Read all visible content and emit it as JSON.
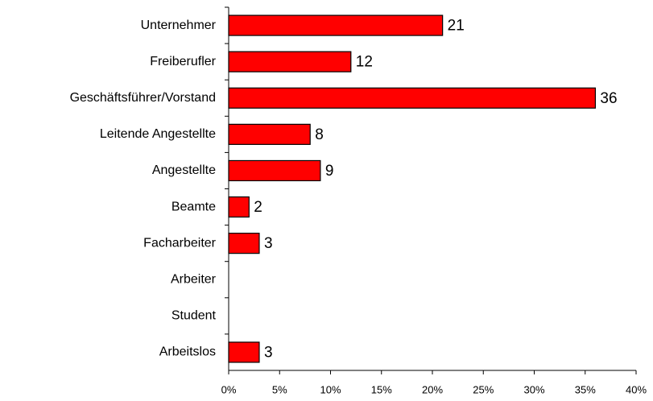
{
  "chart_data": {
    "type": "hbar",
    "categories": [
      "Unternehmer",
      "Freiberufler",
      "Geschäftsführer/Vorstand",
      "Leitende Angestellte",
      "Angestellte",
      "Beamte",
      "Facharbeiter",
      "Arbeiter",
      "Student",
      "Arbeitslos"
    ],
    "values": [
      21,
      12,
      36,
      8,
      9,
      2,
      3,
      0,
      0,
      3
    ],
    "value_labels": [
      "21",
      "12",
      "36",
      "8",
      "9",
      "2",
      "3",
      null,
      null,
      "3"
    ],
    "color": "#ff0000",
    "xlim": [
      0,
      40
    ],
    "xticks": [
      {
        "value": 0,
        "label": "0%"
      },
      {
        "value": 5,
        "label": "5%"
      },
      {
        "value": 10,
        "label": "10%"
      },
      {
        "value": 15,
        "label": "15%"
      },
      {
        "value": 20,
        "label": "20%"
      },
      {
        "value": 25,
        "label": "25%"
      },
      {
        "value": 30,
        "label": "30%"
      },
      {
        "value": 35,
        "label": "35%"
      },
      {
        "value": 40,
        "label": "40%"
      }
    ],
    "grid": false
  }
}
